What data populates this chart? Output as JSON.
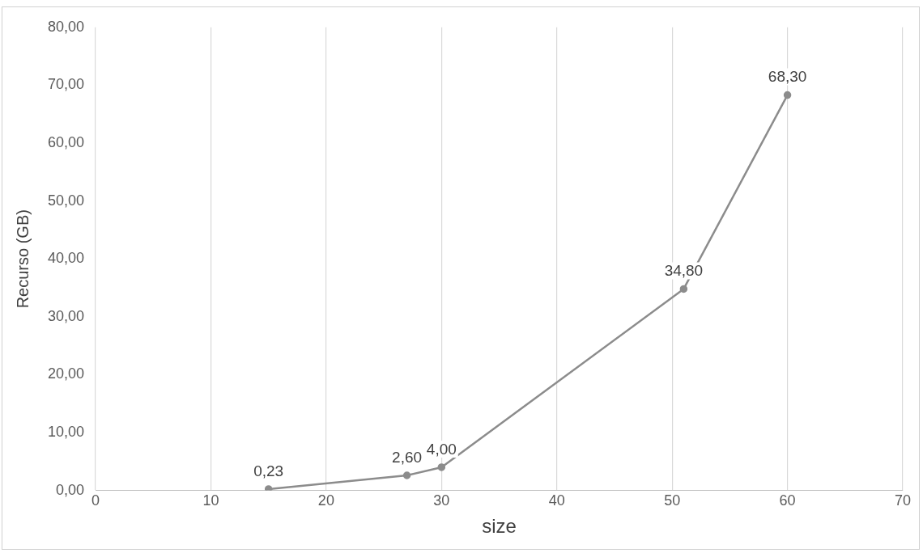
{
  "chart_data": {
    "type": "line",
    "xlabel": "size",
    "ylabel": "Recurso (GB)",
    "x": [
      15,
      27,
      30,
      51,
      60
    ],
    "series": [
      {
        "color": "#8c8c8c",
        "values": [
          0.23,
          2.6,
          4.0,
          34.8,
          68.3
        ],
        "value_labels": [
          "0,23",
          "2,60",
          "4,00",
          "34,80",
          "68,30"
        ]
      }
    ],
    "xlim": [
      0,
      70
    ],
    "xticks": [
      0,
      10,
      20,
      30,
      40,
      50,
      60,
      70
    ],
    "ylim": [
      0,
      80
    ],
    "yticks": [
      {
        "value": 0,
        "label": "0,00"
      },
      {
        "value": 10,
        "label": "10,00"
      },
      {
        "value": 20,
        "label": "20,00"
      },
      {
        "value": 30,
        "label": "30,00"
      },
      {
        "value": 40,
        "label": "40,00"
      },
      {
        "value": 50,
        "label": "50,00"
      },
      {
        "value": 60,
        "label": "60,00"
      },
      {
        "value": 70,
        "label": "70,00"
      },
      {
        "value": 80,
        "label": "80,00"
      }
    ],
    "grid": "x",
    "legend": false,
    "marker": "circle",
    "line_style": "solid"
  }
}
